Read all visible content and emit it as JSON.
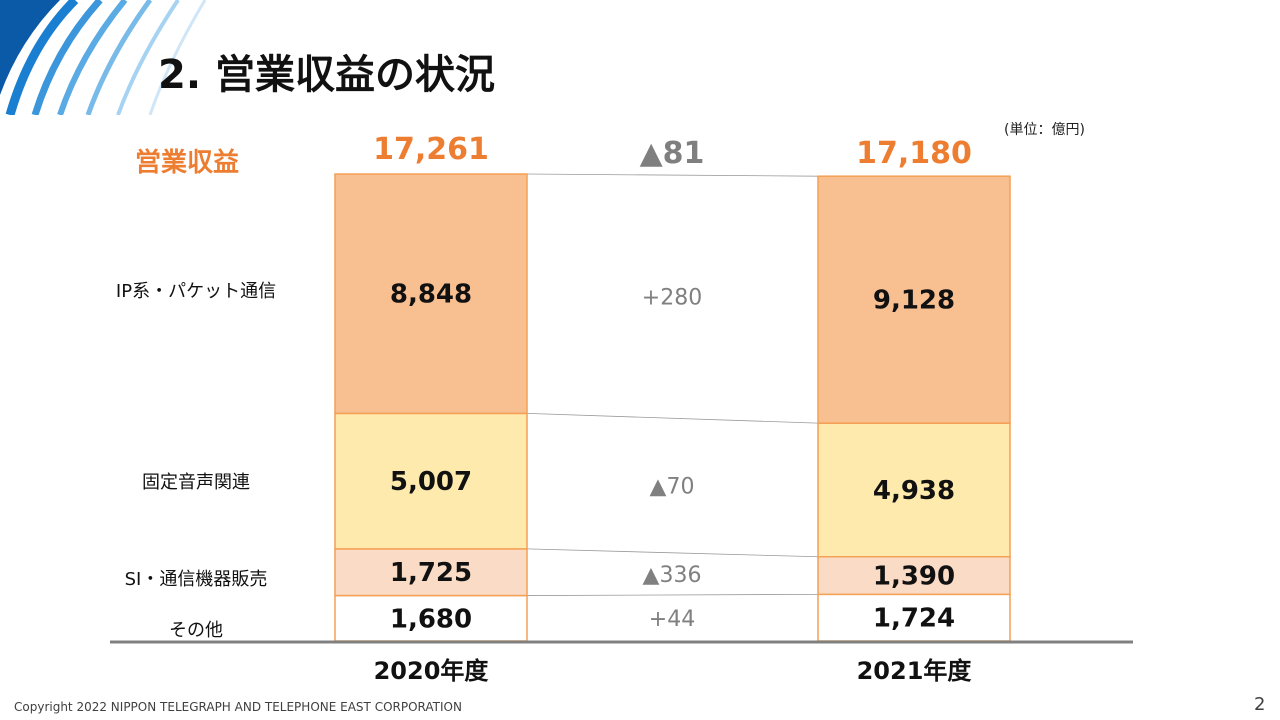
{
  "slide": {
    "title": "2. 営業収益の状況",
    "unit": "(単位：億円)",
    "footer": "Copyright 2022 NIPPON TELEGRAPH AND TELEPHONE EAST CORPORATION",
    "page_number": "2"
  },
  "colors": {
    "ip": "#f8bf91",
    "voice": "#ffeaae",
    "si": "#fadcc6",
    "other": "#ffffff",
    "border": "#f4a055",
    "accent": "#ed7d31",
    "change": "#808080",
    "banner": "#0a63b5"
  },
  "chart_data": {
    "type": "bar",
    "stacked": true,
    "categories": [
      "2020年度",
      "2021年度"
    ],
    "total_label": "営業収益",
    "totals": [
      "17,261",
      "17,180"
    ],
    "total_change": "▲81",
    "series": [
      {
        "name": "その他",
        "values": [
          1680,
          1724
        ],
        "labels": [
          "1,680",
          "1,724"
        ],
        "change": "+44"
      },
      {
        "name": "SI・通信機器販売",
        "values": [
          1725,
          1390
        ],
        "labels": [
          "1,725",
          "1,390"
        ],
        "change": "▲336"
      },
      {
        "name": "固定音声関連",
        "values": [
          5007,
          4938
        ],
        "labels": [
          "5,007",
          "4,938"
        ],
        "change": "▲70"
      },
      {
        "name": "IP系・パケット通信",
        "values": [
          8848,
          9128
        ],
        "labels": [
          "8,848",
          "9,128"
        ],
        "change": "+280"
      }
    ]
  }
}
